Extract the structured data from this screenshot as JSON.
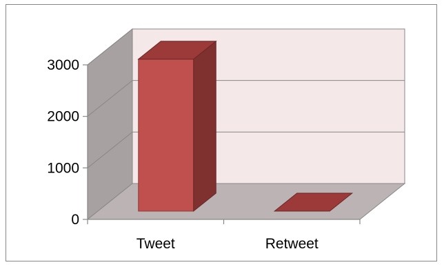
{
  "chart_data": {
    "type": "bar",
    "categories": [
      "Tweet",
      "Retweet"
    ],
    "values": [
      2950,
      0
    ],
    "title": "",
    "xlabel": "",
    "ylabel": "",
    "ylim": [
      0,
      3000
    ],
    "y_ticks": [
      0,
      1000,
      2000,
      3000
    ],
    "y_tick_labels": [
      "0",
      "1000",
      "2000",
      "3000"
    ],
    "grid": true,
    "legend": false,
    "colors": {
      "bar_front": "#c0504d",
      "bar_side": "#7f3130",
      "bar_top": "#9b3a38",
      "back_wall": "#f4e9e8",
      "side_wall": "#a8a1a1",
      "floor": "#bcb4b4",
      "axis": "#878787"
    }
  }
}
